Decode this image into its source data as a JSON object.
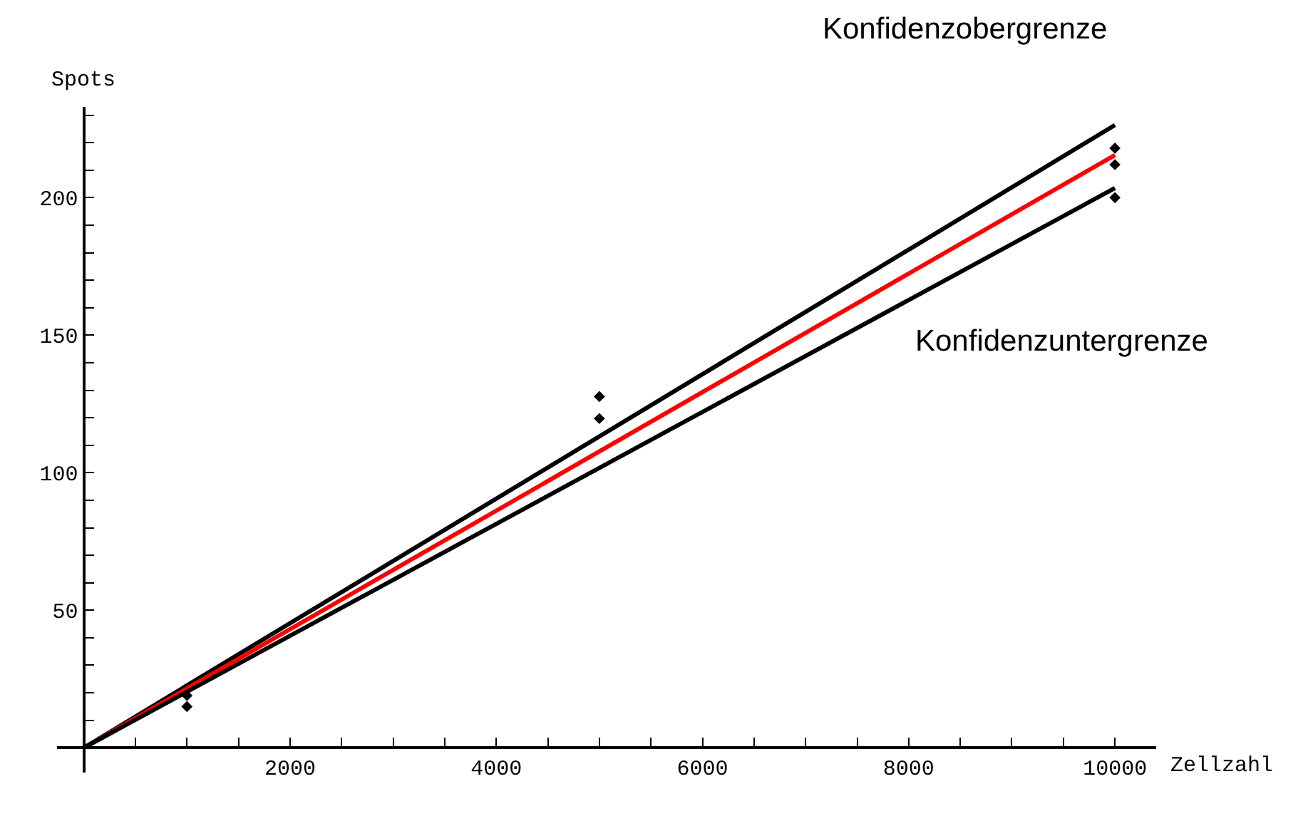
{
  "chart_data": {
    "type": "line",
    "xlabel": "Zellzahl",
    "ylabel": "Spots",
    "xlim": [
      -260,
      10400
    ],
    "ylim": [
      -9,
      233
    ],
    "xticks": [
      {
        "value": 500,
        "label": null
      },
      {
        "value": 1000,
        "label": null
      },
      {
        "value": 1500,
        "label": null
      },
      2000,
      {
        "value": 2500,
        "label": null
      },
      {
        "value": 3000,
        "label": null
      },
      {
        "value": 3500,
        "label": null
      },
      4000,
      {
        "value": 4500,
        "label": null
      },
      {
        "value": 5000,
        "label": null
      },
      {
        "value": 5500,
        "label": null
      },
      6000,
      {
        "value": 6500,
        "label": null
      },
      {
        "value": 7000,
        "label": null
      },
      {
        "value": 7500,
        "label": null
      },
      8000,
      {
        "value": 8500,
        "label": null
      },
      {
        "value": 9000,
        "label": null
      },
      {
        "value": 9500,
        "label": null
      },
      10000
    ],
    "yticks": [
      {
        "value": 10,
        "label": null
      },
      {
        "value": 20,
        "label": null
      },
      {
        "value": 30,
        "label": null
      },
      {
        "value": 40,
        "label": null
      },
      50,
      {
        "value": 60,
        "label": null
      },
      {
        "value": 70,
        "label": null
      },
      {
        "value": 80,
        "label": null
      },
      {
        "value": 90,
        "label": null
      },
      100,
      {
        "value": 110,
        "label": null
      },
      {
        "value": 120,
        "label": null
      },
      {
        "value": 130,
        "label": null
      },
      {
        "value": 140,
        "label": null
      },
      150,
      {
        "value": 160,
        "label": null
      },
      {
        "value": 170,
        "label": null
      },
      {
        "value": 180,
        "label": null
      },
      {
        "value": 190,
        "label": null
      },
      200,
      {
        "value": 210,
        "label": null
      },
      {
        "value": 220,
        "label": null
      },
      {
        "value": 230,
        "label": null
      }
    ],
    "series": [
      {
        "name": "Konfidenzobergrenze",
        "color": "#000000",
        "x": [
          0,
          10000
        ],
        "values": [
          0,
          226.4
        ]
      },
      {
        "color": "#ff0000",
        "x": [
          0,
          10000
        ],
        "values": [
          0,
          215.5
        ]
      },
      {
        "name": "Konfidenzuntergrenze",
        "color": "#000000",
        "x": [
          0,
          10000
        ],
        "values": [
          0,
          203.5
        ]
      },
      {
        "type": "scatter",
        "marker": "diamond",
        "color": "#000000",
        "x": [
          1000,
          1000,
          5000,
          5000,
          10000,
          10000,
          10000
        ],
        "values": [
          19,
          15,
          127.7,
          119.7,
          218,
          212,
          200
        ]
      }
    ]
  }
}
